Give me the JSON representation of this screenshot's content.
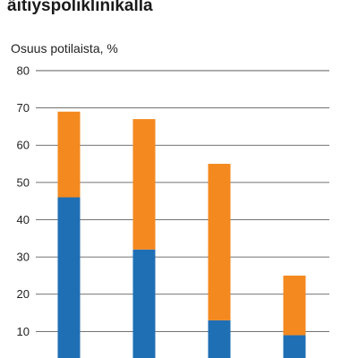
{
  "chart_data": {
    "type": "bar",
    "stacked": true,
    "title": "äitiyspoliklinikalla",
    "ylabel": "Osuus potilaista, %",
    "xlabel": "",
    "ylim": [
      0,
      80
    ],
    "yticks": [
      10,
      20,
      30,
      40,
      50,
      60,
      70,
      80
    ],
    "categories": [
      "",
      "",
      "",
      ""
    ],
    "series": [
      {
        "values": [
          46,
          32,
          13,
          9
        ],
        "color": "#1f6fb5"
      },
      {
        "values": [
          23,
          35,
          42,
          16
        ],
        "color": "#f4891f"
      }
    ],
    "grid": true
  }
}
